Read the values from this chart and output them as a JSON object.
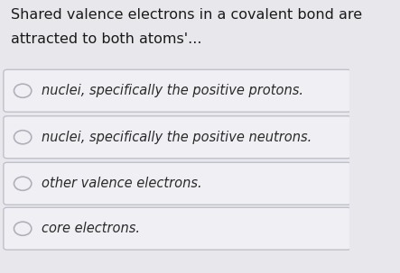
{
  "title_line1": "Shared valence electrons in a covalent bond are",
  "title_line2": "attracted to both atoms'...",
  "options": [
    "nuclei, specifically the positive protons.",
    "nuclei, specifically the positive neutrons.",
    "other valence electrons.",
    "core electrons."
  ],
  "bg_color": "#e8e8ec",
  "box_color": "#f0f0f4",
  "box_border_color": "#c0c0cc",
  "title_color": "#1a1a1a",
  "option_text_color": "#2a2a2a",
  "circle_color": "#b0b0bb",
  "title_fontsize": 11.5,
  "option_fontsize": 10.5
}
